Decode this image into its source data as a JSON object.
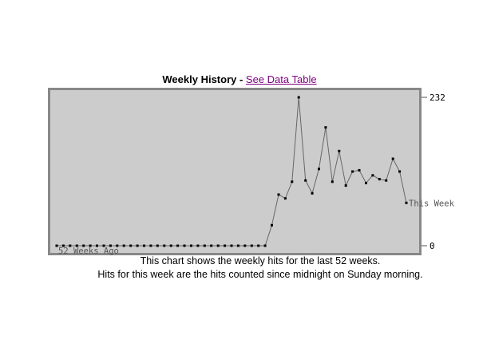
{
  "title": {
    "main": "Weekly History",
    "separator": " - ",
    "link": "See Data Table"
  },
  "captions": {
    "line1": "This chart shows the weekly hits for the last 52 weeks.",
    "line2": "Hits for this week are the hits counted since midnight on Sunday morning."
  },
  "chart_data": {
    "type": "line",
    "title": "Weekly History",
    "x_start_label": "52 Weeks Ago",
    "x_end_label": "This Week",
    "ylim": [
      0,
      232
    ],
    "y_tick_labels": [
      "232",
      "0"
    ],
    "grid": false,
    "series": [
      {
        "values": [
          0,
          0,
          0,
          0,
          0,
          0,
          0,
          0,
          0,
          0,
          0,
          0,
          0,
          0,
          0,
          0,
          0,
          0,
          0,
          0,
          0,
          0,
          0,
          0,
          0,
          0,
          0,
          0,
          0,
          0,
          0,
          0,
          32,
          80,
          74,
          100,
          232,
          102,
          82,
          120,
          185,
          100,
          148,
          94,
          116,
          118,
          98,
          110,
          104,
          102,
          136,
          116,
          67
        ]
      }
    ],
    "colors": {
      "plot_background": "#cccccc",
      "line": "#666666",
      "marker": "#000000",
      "axis_text": "#555555"
    }
  }
}
